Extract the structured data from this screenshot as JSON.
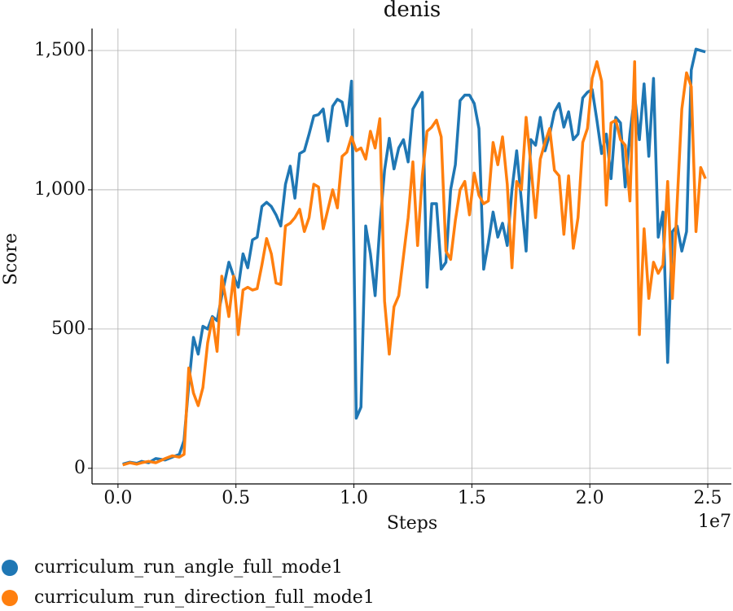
{
  "chart_data": {
    "type": "line",
    "title": "denis",
    "x_label": "Steps",
    "y_label": "Score",
    "x_offset_label": "1e7",
    "x": [
      0.02,
      0.05,
      0.08,
      0.1,
      0.13,
      0.16,
      0.2,
      0.23,
      0.26,
      0.28,
      0.3,
      0.32,
      0.34,
      0.36,
      0.38,
      0.4,
      0.42,
      0.44,
      0.47,
      0.49,
      0.51,
      0.53,
      0.55,
      0.57,
      0.59,
      0.61,
      0.63,
      0.65,
      0.67,
      0.69,
      0.71,
      0.73,
      0.75,
      0.77,
      0.79,
      0.81,
      0.83,
      0.85,
      0.87,
      0.89,
      0.91,
      0.93,
      0.95,
      0.97,
      0.99,
      1.01,
      1.03,
      1.05,
      1.07,
      1.09,
      1.11,
      1.13,
      1.15,
      1.17,
      1.19,
      1.21,
      1.23,
      1.25,
      1.27,
      1.29,
      1.31,
      1.33,
      1.35,
      1.37,
      1.39,
      1.41,
      1.43,
      1.45,
      1.47,
      1.49,
      1.51,
      1.53,
      1.55,
      1.57,
      1.59,
      1.61,
      1.63,
      1.65,
      1.67,
      1.69,
      1.71,
      1.73,
      1.75,
      1.77,
      1.79,
      1.81,
      1.83,
      1.85,
      1.87,
      1.89,
      1.91,
      1.93,
      1.95,
      1.97,
      1.99,
      2.01,
      2.03,
      2.05,
      2.07,
      2.09,
      2.11,
      2.13,
      2.15,
      2.17,
      2.19,
      2.21,
      2.23,
      2.25,
      2.27,
      2.29,
      2.31,
      2.33,
      2.35,
      2.37,
      2.39,
      2.41,
      2.43,
      2.45,
      2.47,
      2.49
    ],
    "series": [
      {
        "name": "curriculum_run_angle_full_mode1",
        "color": "#1f77b4",
        "values": [
          15,
          22,
          18,
          25,
          20,
          35,
          30,
          40,
          50,
          100,
          300,
          470,
          410,
          510,
          500,
          545,
          530,
          620,
          740,
          690,
          650,
          770,
          720,
          820,
          830,
          940,
          955,
          940,
          910,
          870,
          1020,
          1085,
          970,
          1130,
          1140,
          1200,
          1265,
          1270,
          1290,
          1175,
          1300,
          1325,
          1315,
          1230,
          1390,
          180,
          220,
          870,
          770,
          620,
          870,
          1070,
          1185,
          1075,
          1150,
          1180,
          1100,
          1290,
          1320,
          1350,
          650,
          950,
          950,
          715,
          740,
          1000,
          1090,
          1320,
          1340,
          1340,
          1310,
          1220,
          715,
          810,
          920,
          830,
          880,
          800,
          1000,
          1140,
          960,
          780,
          1180,
          1160,
          1260,
          1140,
          1200,
          1280,
          1310,
          1225,
          1280,
          1180,
          1200,
          1330,
          1350,
          1360,
          1250,
          1130,
          1200,
          1040,
          1260,
          1240,
          1010,
          1200,
          1340,
          1180,
          1380,
          1120,
          1400,
          830,
          920,
          380,
          850,
          870,
          780,
          850,
          1430,
          1505,
          1500,
          1495
        ]
      },
      {
        "name": "curriculum_run_direction_full_mode1",
        "color": "#ff7f0e",
        "values": [
          12,
          20,
          15,
          20,
          25,
          20,
          35,
          45,
          40,
          50,
          360,
          270,
          225,
          290,
          450,
          540,
          420,
          690,
          545,
          690,
          480,
          640,
          650,
          640,
          645,
          730,
          825,
          770,
          665,
          660,
          870,
          880,
          900,
          930,
          850,
          900,
          1020,
          1010,
          860,
          930,
          1000,
          935,
          1120,
          1135,
          1190,
          1140,
          1150,
          1110,
          1210,
          1150,
          1255,
          600,
          410,
          580,
          620,
          760,
          900,
          1100,
          800,
          1050,
          1210,
          1225,
          1250,
          1190,
          780,
          750,
          890,
          1000,
          1030,
          910,
          1060,
          980,
          950,
          960,
          1170,
          1090,
          1190,
          1020,
          720,
          1030,
          1000,
          1260,
          1090,
          900,
          1110,
          1170,
          1220,
          1070,
          1050,
          840,
          1050,
          790,
          900,
          1170,
          1220,
          1400,
          1460,
          1390,
          945,
          1240,
          1250,
          1180,
          1160,
          960,
          1460,
          480,
          860,
          610,
          740,
          700,
          730,
          1030,
          610,
          950,
          1290,
          1420,
          1370,
          850,
          1080,
          1040
        ]
      }
    ],
    "xlim": [
      -0.11,
      2.6
    ],
    "ylim": [
      -56,
      1579
    ],
    "xticks": [
      {
        "value": 0,
        "label": "0.0"
      },
      0.5,
      {
        "value": 1,
        "label": "1.0"
      },
      1.5,
      {
        "value": 2,
        "label": "2.0"
      },
      2.5
    ],
    "yticks": [
      0,
      500,
      {
        "value": 1000,
        "label": "1,000"
      },
      {
        "value": 1500,
        "label": "1,500"
      }
    ],
    "grid": true,
    "legend": "bottom"
  }
}
